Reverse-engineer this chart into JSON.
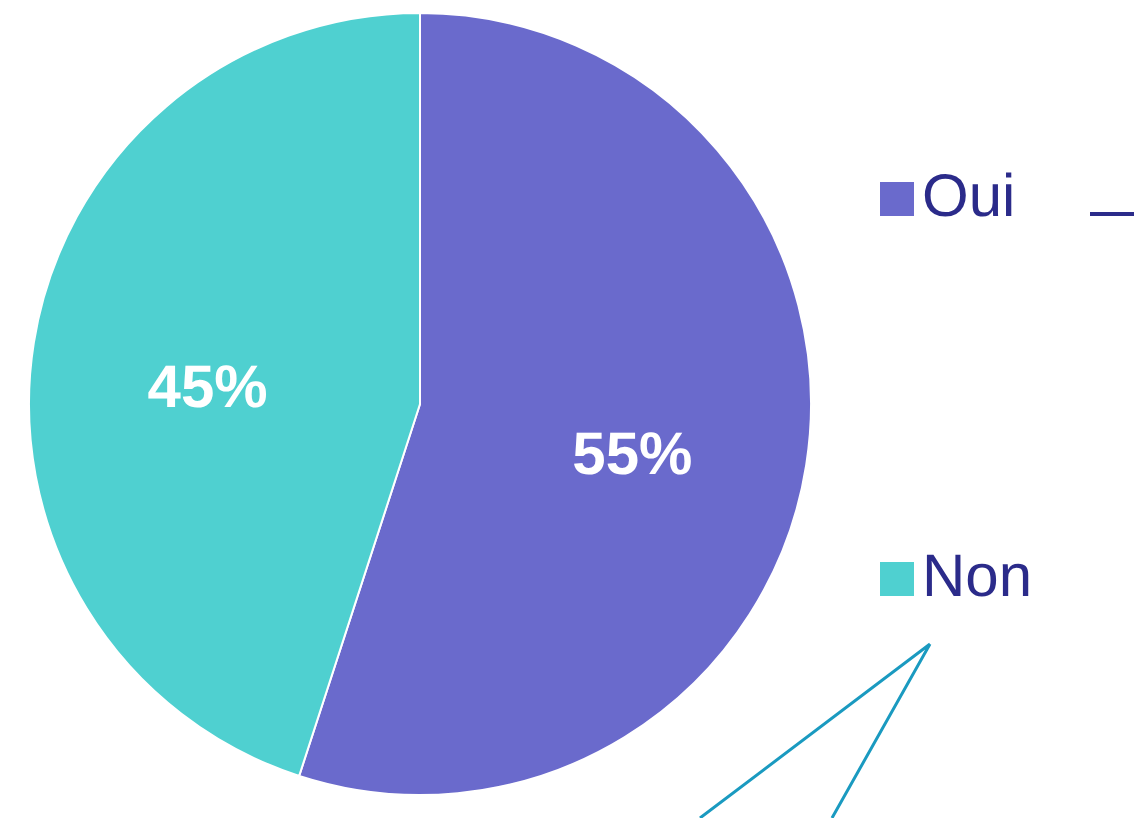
{
  "chart_data": {
    "type": "pie",
    "categories": [
      "Oui",
      "Non"
    ],
    "values": [
      55,
      45
    ],
    "colors": [
      "#6a6acc",
      "#4fd0d0"
    ],
    "value_labels": [
      "55%",
      "45%"
    ],
    "legend": "right"
  }
}
